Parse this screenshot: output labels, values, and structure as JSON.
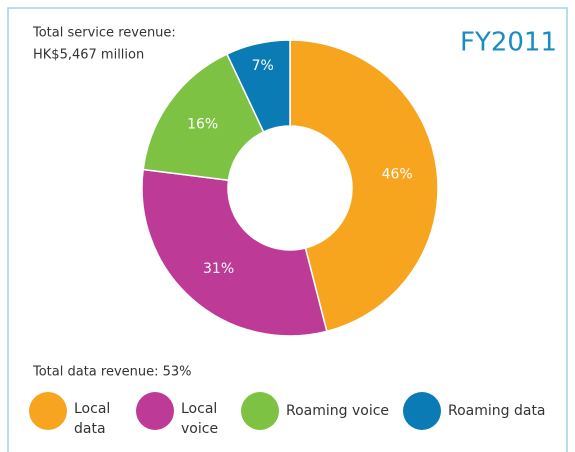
{
  "chart_data": {
    "type": "pie",
    "title": "FY2011",
    "annotations": [
      "Total service revenue:",
      "HK$5,467 million",
      "Total data revenue: 53%"
    ],
    "donut": true,
    "series": [
      {
        "name": "Local data",
        "color": "#f7a51e",
        "values": [
          46
        ],
        "value_labels": [
          "46%"
        ]
      },
      {
        "name": "Local voice",
        "color": "#bd3b96",
        "values": [
          31
        ],
        "value_labels": [
          "31%"
        ]
      },
      {
        "name": "Roaming voice",
        "color": "#7dc242",
        "values": [
          16
        ],
        "value_labels": [
          "16%"
        ]
      },
      {
        "name": "Roaming data",
        "color": "#0a7bb4",
        "values": [
          7
        ],
        "value_labels": [
          "7%"
        ]
      }
    ]
  }
}
